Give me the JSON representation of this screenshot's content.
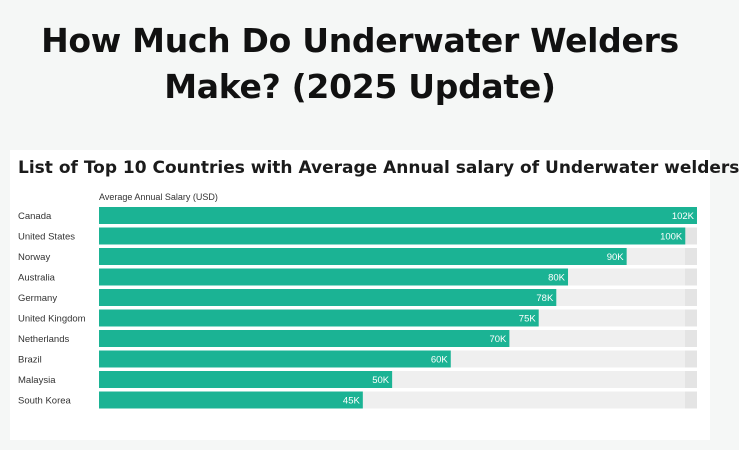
{
  "headline": {
    "line1": "How Much Do Underwater Welders",
    "line2": "Make? (2025 Update)"
  },
  "colors": {
    "bar": "#1bb394",
    "track": "#efefef",
    "track_edge": "#e4e4e4",
    "label": "#333333",
    "value_label": "#ffffff"
  },
  "chart_data": {
    "type": "bar",
    "orientation": "horizontal",
    "title": "List of Top 10 Countries with Average Annual salary of Underwater welders",
    "xlabel": "Average Annual Salary (USD)",
    "ylabel": "",
    "xlim": [
      0,
      102
    ],
    "grid": false,
    "legend": "none",
    "categories": [
      "Canada",
      "United States",
      "Norway",
      "Australia",
      "Germany",
      "United Kingdom",
      "Netherlands",
      "Brazil",
      "Malaysia",
      "South Korea"
    ],
    "values": [
      102,
      100,
      90,
      80,
      78,
      75,
      70,
      60,
      50,
      45
    ],
    "value_labels": [
      "102K",
      "100K",
      "90K",
      "80K",
      "78K",
      "75K",
      "70K",
      "60K",
      "50K",
      "45K"
    ]
  }
}
